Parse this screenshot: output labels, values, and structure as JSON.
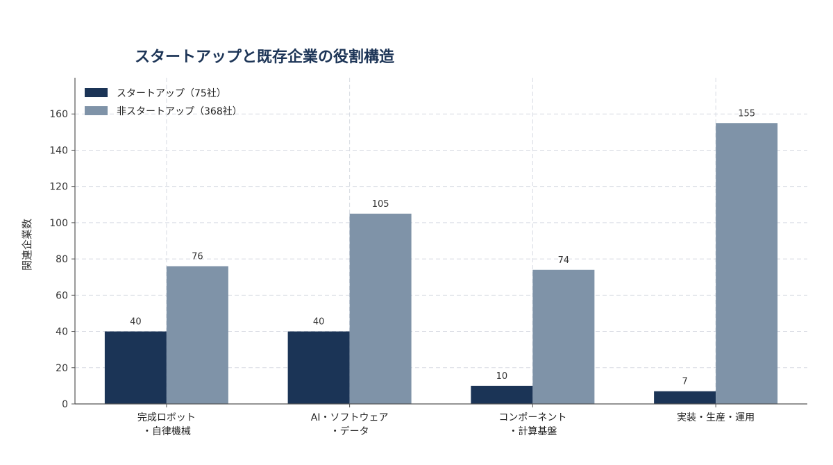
{
  "chart_data": {
    "type": "bar",
    "title": "スタートアップと既存企業の役割構造",
    "xlabel": "",
    "ylabel": "関連企業数",
    "categories": [
      [
        "完成ロボット",
        "・自律機械"
      ],
      [
        "AI・ソフトウェア",
        "・データ"
      ],
      [
        "コンポーネント",
        "・計算基盤"
      ],
      [
        "実装・生産・運用"
      ]
    ],
    "series": [
      {
        "name": "スタートアップ（75社）",
        "values": [
          40,
          40,
          10,
          7
        ],
        "color": "#1b3456"
      },
      {
        "name": "非スタートアップ（368社）",
        "values": [
          76,
          105,
          74,
          155
        ],
        "color": "#7f93a8"
      }
    ],
    "ylim": [
      0,
      180
    ],
    "yticks": [
      0,
      20,
      40,
      60,
      80,
      100,
      120,
      140,
      160
    ],
    "grid": true,
    "legend_position": "top-left"
  },
  "colors": {
    "axis": "#555555",
    "grid": "#d8dbe3",
    "title": "#1d3557"
  }
}
